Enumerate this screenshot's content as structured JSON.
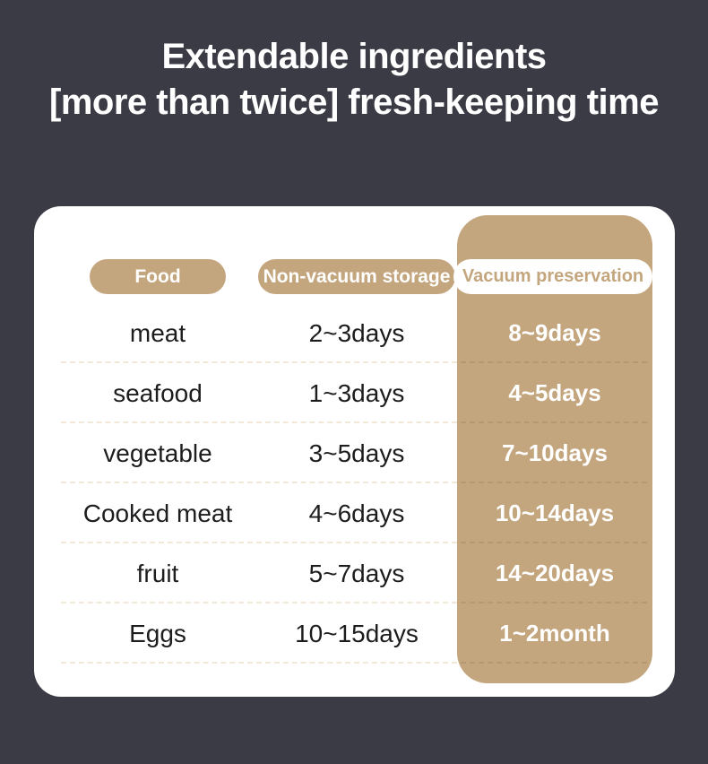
{
  "colors": {
    "background": "#3a3b44",
    "accent_tan": "#c4a67e",
    "card": "#ffffff",
    "row_text": "#1d1d1f",
    "separator_on_white": "#f1e8d8",
    "separator_on_tan": "#b39871"
  },
  "title": {
    "line1": "Extendable ingredients",
    "line2": "[more than twice] fresh-keeping time"
  },
  "table": {
    "headers": {
      "food": "Food",
      "non_vacuum": "Non-vacuum storage",
      "vacuum": "Vacuum preservation"
    },
    "rows": [
      {
        "food": "meat",
        "non_vacuum": "2~3days",
        "vacuum": "8~9days"
      },
      {
        "food": "seafood",
        "non_vacuum": "1~3days",
        "vacuum": "4~5days"
      },
      {
        "food": "vegetable",
        "non_vacuum": "3~5days",
        "vacuum": "7~10days"
      },
      {
        "food": "Cooked meat",
        "non_vacuum": "4~6days",
        "vacuum": "10~14days"
      },
      {
        "food": "fruit",
        "non_vacuum": "5~7days",
        "vacuum": "14~20days"
      },
      {
        "food": "Eggs",
        "non_vacuum": "10~15days",
        "vacuum": "1~2month"
      }
    ]
  },
  "chart_data": {
    "type": "table",
    "title": "Extendable ingredients [more than twice] fresh-keeping time",
    "columns": [
      "Food",
      "Non-vacuum storage",
      "Vacuum preservation"
    ],
    "rows": [
      [
        "meat",
        "2~3days",
        "8~9days"
      ],
      [
        "seafood",
        "1~3days",
        "4~5days"
      ],
      [
        "vegetable",
        "3~5days",
        "7~10days"
      ],
      [
        "Cooked meat",
        "4~6days",
        "10~14days"
      ],
      [
        "fruit",
        "5~7days",
        "14~20days"
      ],
      [
        "Eggs",
        "10~15days",
        "1~2month"
      ]
    ]
  }
}
